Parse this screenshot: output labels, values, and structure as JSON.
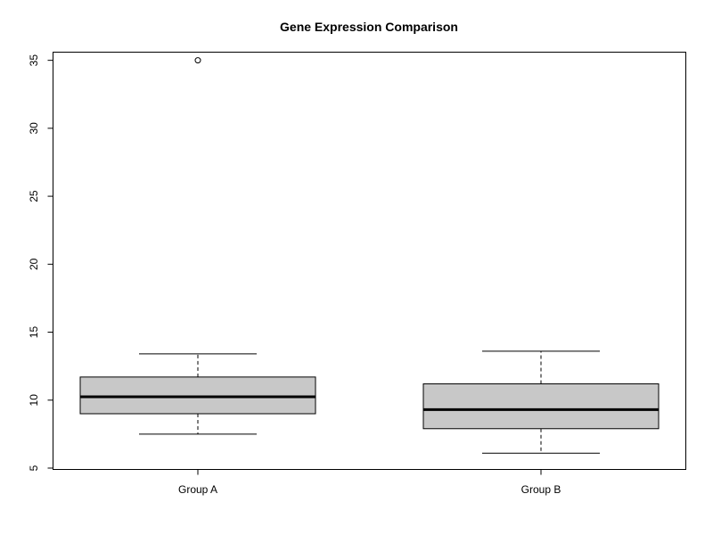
{
  "chart_data": {
    "type": "boxplot",
    "title": "Gene Expression Comparison",
    "xlabel": "",
    "ylabel": "",
    "categories": [
      "Group A",
      "Group B"
    ],
    "ylim": [
      4.9,
      35.6
    ],
    "yticks": [
      5,
      10,
      15,
      20,
      25,
      30,
      35
    ],
    "grid": false,
    "box_fill": "#c8c8c8",
    "boxes": [
      {
        "category": "Group A",
        "whisker_low": 7.5,
        "q1": 9.0,
        "median": 10.25,
        "q3": 11.7,
        "whisker_high": 13.4,
        "outliers": [
          35.0
        ]
      },
      {
        "category": "Group B",
        "whisker_low": 6.1,
        "q1": 7.9,
        "median": 9.3,
        "q3": 11.2,
        "whisker_high": 13.6,
        "outliers": []
      }
    ]
  }
}
